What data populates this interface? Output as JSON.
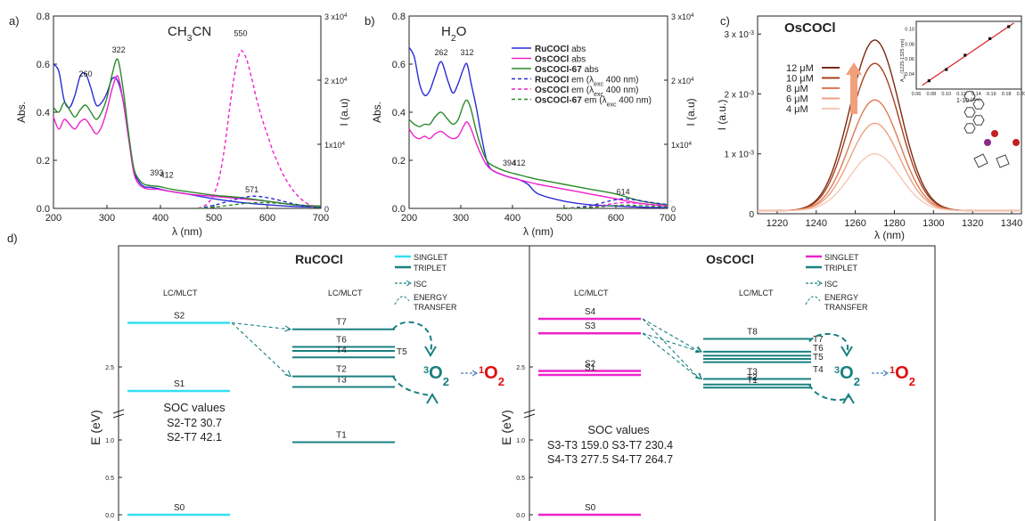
{
  "chart_data": [
    {
      "panel": "a)",
      "type": "line",
      "title": "CH3CN",
      "xlabel": "λ (nm)",
      "ylabel": "Abs.",
      "y2label": "I (a.u)",
      "xlim": [
        200,
        700
      ],
      "ylim": [
        0,
        0.8
      ],
      "y2lim": [
        0,
        30000
      ],
      "xticks": [
        "200",
        "300",
        "400",
        "500",
        "600",
        "700"
      ],
      "yticks": [
        "0.0",
        "0.2",
        "0.4",
        "0.6",
        "0.8"
      ],
      "y2ticks": [
        "0",
        "1x10^4",
        "2 x10^4",
        "3 x10^4"
      ],
      "annotations": [
        {
          "text": "260",
          "x": 260,
          "y": 0.54
        },
        {
          "text": "322",
          "x": 322,
          "y": 0.64
        },
        {
          "text": "393",
          "x": 393,
          "y": 0.13
        },
        {
          "text": "412",
          "x": 412,
          "y": 0.12
        },
        {
          "text": "550",
          "x": 550,
          "y": 0.71
        },
        {
          "text": "571",
          "x": 571,
          "y": 0.06
        }
      ],
      "series": [
        {
          "name": "RuCOCl abs",
          "color": "#2b2bd6",
          "dash": "solid",
          "x": [
            200,
            210,
            220,
            230,
            240,
            250,
            260,
            270,
            280,
            290,
            300,
            310,
            320,
            330,
            340,
            350,
            360,
            370,
            380,
            390,
            400,
            420,
            450,
            500,
            550,
            600,
            650,
            700
          ],
          "y": [
            0.6,
            0.57,
            0.45,
            0.42,
            0.47,
            0.55,
            0.56,
            0.5,
            0.43,
            0.44,
            0.48,
            0.54,
            0.53,
            0.45,
            0.3,
            0.16,
            0.11,
            0.09,
            0.088,
            0.085,
            0.08,
            0.07,
            0.06,
            0.04,
            0.025,
            0.015,
            0.008,
            0.005
          ]
        },
        {
          "name": "OsCOCl abs",
          "color": "#ee22cc",
          "dash": "solid",
          "x": [
            200,
            210,
            220,
            230,
            240,
            250,
            260,
            270,
            280,
            290,
            300,
            310,
            320,
            330,
            340,
            350,
            360,
            370,
            380,
            390,
            400,
            420,
            450,
            500,
            550,
            600,
            650,
            700
          ],
          "y": [
            0.38,
            0.33,
            0.37,
            0.35,
            0.33,
            0.36,
            0.37,
            0.34,
            0.31,
            0.34,
            0.41,
            0.5,
            0.55,
            0.45,
            0.3,
            0.15,
            0.1,
            0.085,
            0.08,
            0.08,
            0.078,
            0.07,
            0.06,
            0.05,
            0.04,
            0.03,
            0.015,
            0.01
          ]
        },
        {
          "name": "OsCOCl-67 abs",
          "color": "#2a8a2a",
          "dash": "solid",
          "x": [
            200,
            210,
            220,
            230,
            240,
            250,
            260,
            270,
            280,
            290,
            300,
            310,
            320,
            330,
            340,
            350,
            360,
            370,
            380,
            390,
            400,
            420,
            450,
            500,
            550,
            600,
            650,
            700
          ],
          "y": [
            0.42,
            0.4,
            0.44,
            0.41,
            0.38,
            0.41,
            0.43,
            0.4,
            0.37,
            0.4,
            0.46,
            0.56,
            0.62,
            0.5,
            0.32,
            0.17,
            0.12,
            0.1,
            0.095,
            0.093,
            0.09,
            0.08,
            0.07,
            0.055,
            0.045,
            0.03,
            0.015,
            0.01
          ]
        },
        {
          "name": "RuCOCl em",
          "color": "#2b2bd6",
          "dash": "dash",
          "axis": "y2",
          "x": [
            470,
            490,
            510,
            530,
            550,
            571,
            590,
            610,
            630,
            650,
            670,
            690,
            700
          ],
          "y": [
            0,
            300,
            700,
            1200,
            1600,
            1900,
            1800,
            1500,
            1100,
            700,
            400,
            150,
            50
          ]
        },
        {
          "name": "OsCOCl em",
          "color": "#ee22cc",
          "dash": "dash",
          "axis": "y2",
          "x": [
            470,
            480,
            490,
            500,
            510,
            520,
            530,
            540,
            550,
            560,
            570,
            580,
            590,
            600,
            610,
            620,
            630,
            640,
            650,
            660,
            670,
            680,
            690
          ],
          "y": [
            0,
            300,
            900,
            2200,
            4800,
            9500,
            16000,
            21500,
            24500,
            23500,
            20500,
            17000,
            14000,
            11500,
            9000,
            7000,
            5200,
            3800,
            2600,
            1700,
            1000,
            500,
            200
          ]
        },
        {
          "name": "OsCOCl-67 em",
          "color": "#2a8a2a",
          "dash": "dash",
          "axis": "y2",
          "x": [
            470,
            500,
            530,
            560,
            590,
            620,
            650,
            680,
            700
          ],
          "y": [
            0,
            200,
            500,
            800,
            900,
            800,
            600,
            300,
            100
          ]
        }
      ]
    },
    {
      "panel": "b)",
      "type": "line",
      "title": "H2O",
      "xlabel": "λ (nm)",
      "ylabel": "Abs.",
      "y2label": "I (a.u)",
      "xlim": [
        200,
        700
      ],
      "ylim": [
        0,
        0.8
      ],
      "y2lim": [
        0,
        30000
      ],
      "xticks": [
        "200",
        "300",
        "400",
        "500",
        "600",
        "700"
      ],
      "yticks": [
        "0.0",
        "0.2",
        "0.4",
        "0.6",
        "0.8"
      ],
      "y2ticks": [
        "0",
        "1x10^4",
        "2 x10^4",
        "3 x10^4"
      ],
      "annotations": [
        {
          "text": "262",
          "x": 262,
          "y": 0.63
        },
        {
          "text": "312",
          "x": 312,
          "y": 0.63
        },
        {
          "text": "394",
          "x": 394,
          "y": 0.17
        },
        {
          "text": "412",
          "x": 412,
          "y": 0.17
        },
        {
          "text": "614",
          "x": 614,
          "y": 0.05
        }
      ],
      "legend": [
        {
          "label": "RuCOCl abs",
          "bold": "RuCOCl",
          "rest": " abs",
          "color": "#2b2bd6",
          "dash": "solid"
        },
        {
          "label": "OsCOCl abs",
          "bold": "OsCOCl",
          "rest": " abs",
          "color": "#ee22cc",
          "dash": "solid"
        },
        {
          "label": "OsCOCl-67 abs",
          "bold": "OsCOCl-67",
          "rest": " abs",
          "color": "#2a8a2a",
          "dash": "solid"
        },
        {
          "label": "RuCOCl em (λexc 400 nm)",
          "bold": "RuCOCl",
          "rest": " em (λ",
          "sub": "exc",
          "tail": " 400 nm)",
          "color": "#2b2bd6",
          "dash": "dash"
        },
        {
          "label": "OsCOCl em (λexc 400 nm)",
          "bold": "OsCOCl",
          "rest": " em (λ",
          "sub": "exc",
          "tail": " 400 nm)",
          "color": "#ee22cc",
          "dash": "dash"
        },
        {
          "label": "OsCOCl-67 em (λexc 400 nm)",
          "bold": "OsCOCl-67",
          "rest": " em (λ",
          "sub": "exc",
          "tail": " 400 nm)",
          "color": "#2a8a2a",
          "dash": "dash"
        }
      ],
      "series": [
        {
          "name": "RuCOCl abs",
          "color": "#2b2bd6",
          "dash": "solid",
          "x": [
            200,
            210,
            220,
            230,
            240,
            250,
            262,
            275,
            285,
            295,
            305,
            312,
            320,
            330,
            340,
            350,
            360,
            380,
            394,
            412,
            430,
            450,
            500,
            550,
            600,
            650,
            700
          ],
          "y": [
            0.67,
            0.63,
            0.52,
            0.47,
            0.49,
            0.55,
            0.61,
            0.53,
            0.48,
            0.52,
            0.58,
            0.6,
            0.52,
            0.42,
            0.3,
            0.2,
            0.16,
            0.14,
            0.13,
            0.12,
            0.1,
            0.06,
            0.03,
            0.015,
            0.01,
            0.005,
            0.003
          ]
        },
        {
          "name": "OsCOCl abs",
          "color": "#ee22cc",
          "dash": "solid",
          "x": [
            200,
            210,
            220,
            230,
            240,
            250,
            262,
            275,
            285,
            295,
            305,
            312,
            320,
            330,
            340,
            350,
            360,
            380,
            394,
            412,
            430,
            450,
            500,
            550,
            600,
            650,
            700
          ],
          "y": [
            0.33,
            0.3,
            0.29,
            0.3,
            0.29,
            0.31,
            0.32,
            0.3,
            0.29,
            0.3,
            0.34,
            0.36,
            0.33,
            0.27,
            0.22,
            0.18,
            0.16,
            0.14,
            0.13,
            0.12,
            0.11,
            0.1,
            0.08,
            0.06,
            0.04,
            0.02,
            0.01
          ]
        },
        {
          "name": "OsCOCl-67 abs",
          "color": "#2a8a2a",
          "dash": "solid",
          "x": [
            200,
            210,
            220,
            230,
            240,
            250,
            262,
            275,
            285,
            295,
            305,
            312,
            320,
            330,
            340,
            350,
            360,
            380,
            394,
            412,
            430,
            450,
            500,
            550,
            600,
            650,
            700
          ],
          "y": [
            0.37,
            0.35,
            0.34,
            0.35,
            0.35,
            0.38,
            0.4,
            0.37,
            0.35,
            0.37,
            0.43,
            0.45,
            0.41,
            0.32,
            0.25,
            0.2,
            0.18,
            0.16,
            0.15,
            0.14,
            0.13,
            0.12,
            0.1,
            0.08,
            0.06,
            0.03,
            0.015
          ]
        },
        {
          "name": "RuCOCl em",
          "color": "#2b2bd6",
          "dash": "dash",
          "axis": "y2",
          "x": [
            500,
            530,
            560,
            590,
            614,
            640,
            670,
            700
          ],
          "y": [
            0,
            200,
            600,
            1200,
            1500,
            1300,
            900,
            600
          ]
        },
        {
          "name": "OsCOCl em",
          "color": "#ee22cc",
          "dash": "dash",
          "axis": "y2",
          "x": [
            500,
            530,
            560,
            590,
            614,
            640,
            670,
            700
          ],
          "y": [
            0,
            100,
            300,
            700,
            900,
            800,
            600,
            400
          ]
        },
        {
          "name": "OsCOCl-67 em",
          "color": "#2a8a2a",
          "dash": "dash",
          "axis": "y2",
          "x": [
            500,
            530,
            560,
            590,
            614,
            640,
            670,
            700
          ],
          "y": [
            0,
            80,
            200,
            400,
            500,
            450,
            350,
            250
          ]
        }
      ]
    },
    {
      "panel": "c)",
      "type": "line",
      "title": "OsCOCl",
      "xlabel": "λ (nm)",
      "ylabel": "I (a.u.)",
      "xlim": [
        1210,
        1345
      ],
      "ylim": [
        0,
        0.0033
      ],
      "xticks": [
        "1220",
        "1240",
        "1260",
        "1280",
        "1300",
        "1320",
        "1340"
      ],
      "yticks": [
        "0",
        "1 x 10^-3",
        "2 x 10^-3",
        "3 x 10^-3"
      ],
      "legend": [
        "12 μM",
        "10 μM",
        "8 μM",
        "6 μM",
        "4 μM"
      ],
      "peak_x": 1270,
      "series": [
        {
          "name": "12 μM",
          "color": "#7b2a12",
          "peak": 0.00285
        },
        {
          "name": "10 μM",
          "color": "#a8401e",
          "peak": 0.00246
        },
        {
          "name": "8 μM",
          "color": "#dd7a55",
          "peak": 0.00185
        },
        {
          "name": "6 μM",
          "color": "#eda184",
          "peak": 0.00146
        },
        {
          "name": "4 μM",
          "color": "#f6c8b4",
          "peak": 0.00095
        }
      ],
      "inset": {
        "type": "scatter",
        "xlabel": "1-10^-(abs)",
        "ylabel": "A_int (1225-1325 nm)",
        "xlim": [
          0.06,
          0.2
        ],
        "ylim": [
          0.02,
          0.11
        ],
        "xticks": [
          "0.06",
          "0.08",
          "0.10",
          "0.12",
          "0.14",
          "0.16",
          "0.18",
          "0.20"
        ],
        "yticks": [
          "0.04",
          "0.06",
          "0.08",
          "0.10"
        ],
        "x": [
          0.077,
          0.1,
          0.125,
          0.158,
          0.183
        ],
        "y": [
          0.031,
          0.046,
          0.065,
          0.087,
          0.103
        ]
      }
    }
  ],
  "panel_d_label": "d)",
  "jablonski": [
    {
      "title": "RuCOCl",
      "singlet_color": "#33e0f2",
      "triplet_color": "#1a8080",
      "legend": {
        "singlet": "SINGLET",
        "triplet": "TRIPLET",
        "isc": "ISC",
        "energy_transfer_1": "ENERGY",
        "energy_transfer_2": "TRANSFER"
      },
      "col_labels": [
        "LC/MLCT",
        "LC/MLCT"
      ],
      "yaxis_label": "E (eV)",
      "yticks": [
        "0.0",
        "0.5",
        "1.0",
        "2.5"
      ],
      "singlets": [
        {
          "label": "S2",
          "E": 3.05
        },
        {
          "label": "S1",
          "E": 2.2
        },
        {
          "label": "S0",
          "E": 0.0
        }
      ],
      "triplets": [
        {
          "label": "T7",
          "E": 2.97
        },
        {
          "label": "T6",
          "E": 2.75
        },
        {
          "label": "T5",
          "E": 2.7
        },
        {
          "label": "T4",
          "E": 2.62
        },
        {
          "label": "T3",
          "E": 2.25
        },
        {
          "label": "T2",
          "E": 1.85
        },
        {
          "label": "T1",
          "E": 0.97
        }
      ],
      "o2_ground": "3O2",
      "o2_excited": "1O2",
      "soc_title": "SOC values",
      "soc_lines": [
        "S2-T2 30.7",
        "S2-T7 42.1"
      ]
    },
    {
      "title": "OsCOCl",
      "singlet_color": "#ee22cc",
      "triplet_color": "#1a8080",
      "legend": {
        "singlet": "SINGLET",
        "triplet": "TRIPLET",
        "isc": "ISC",
        "energy_transfer_1": "ENERGY",
        "energy_transfer_2": "TRANSFER"
      },
      "col_labels": [
        "LC/MLCT",
        "LC/MLCT"
      ],
      "yaxis_label": "E (eV)",
      "yticks": [
        "0.0",
        "0.5",
        "1.0",
        "2.5"
      ],
      "singlets": [
        {
          "label": "S4",
          "E": 3.1
        },
        {
          "label": "S3",
          "E": 2.92
        },
        {
          "label": "S2",
          "E": 2.45
        },
        {
          "label": "S1",
          "E": 2.4
        },
        {
          "label": "S0",
          "E": 0.0
        }
      ],
      "triplets": [
        {
          "label": "T8",
          "E": 2.85
        },
        {
          "label": "T7",
          "E": 2.69
        },
        {
          "label": "T6",
          "E": 2.64
        },
        {
          "label": "T5",
          "E": 2.6
        },
        {
          "label": "T4",
          "E": 2.56
        },
        {
          "label": "T3",
          "E": 2.35
        },
        {
          "label": "T2",
          "E": 2.28
        },
        {
          "label": "T1",
          "E": 1.7
        }
      ],
      "o2_ground": "3O2",
      "o2_excited": "1O2",
      "soc_title": "SOC values",
      "soc_lines": [
        "S3-T3 159.0   S3-T7 230.4",
        "S4-T3 277.5   S4-T7 264.7"
      ]
    }
  ]
}
